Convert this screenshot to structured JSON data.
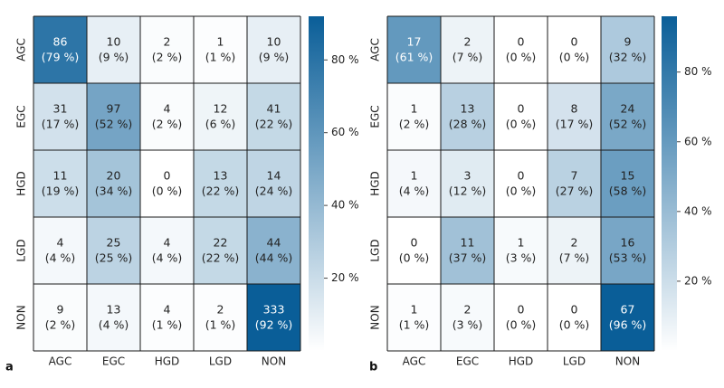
{
  "chart_data": [
    {
      "type": "heatmap",
      "panel_label": "a",
      "rows": [
        "AGC",
        "EGC",
        "HGD",
        "LGD",
        "NON"
      ],
      "columns": [
        "AGC",
        "EGC",
        "HGD",
        "LGD",
        "NON"
      ],
      "counts": [
        [
          86,
          10,
          2,
          1,
          10
        ],
        [
          31,
          97,
          4,
          12,
          41
        ],
        [
          11,
          20,
          0,
          13,
          14
        ],
        [
          4,
          25,
          4,
          22,
          44
        ],
        [
          9,
          13,
          4,
          2,
          333
        ]
      ],
      "percent_labels": [
        [
          "(79 %)",
          "(9 %)",
          "(2 %)",
          "(1 %)",
          "(9 %)"
        ],
        [
          "(17 %)",
          "(52 %)",
          "(2 %)",
          "(6 %)",
          "(22 %)"
        ],
        [
          "(19 %)",
          "(34 %)",
          "(0 %)",
          "(22 %)",
          "(24 %)"
        ],
        [
          "(4 %)",
          "(25 %)",
          "(4 %)",
          "(22 %)",
          "(44 %)"
        ],
        [
          "(2 %)",
          "(4 %)",
          "(1 %)",
          "(1 %)",
          "(92 %)"
        ]
      ],
      "percent_values": [
        [
          79,
          9,
          2,
          1,
          9
        ],
        [
          17,
          52,
          2,
          6,
          22
        ],
        [
          19,
          34,
          0,
          22,
          24
        ],
        [
          4,
          25,
          4,
          22,
          44
        ],
        [
          2,
          4,
          1,
          1,
          92
        ]
      ],
      "colorbar": {
        "range": [
          0,
          92
        ],
        "ticks": [
          20,
          40,
          60,
          80
        ],
        "tick_labels": [
          "20 %",
          "40 %",
          "60 %",
          "80 %"
        ],
        "color_low": "#ffffff",
        "color_high": "#0a5e98"
      }
    },
    {
      "type": "heatmap",
      "panel_label": "b",
      "rows": [
        "AGC",
        "EGC",
        "HGD",
        "LGD",
        "NON"
      ],
      "columns": [
        "AGC",
        "EGC",
        "HGD",
        "LGD",
        "NON"
      ],
      "counts": [
        [
          17,
          2,
          0,
          0,
          9
        ],
        [
          1,
          13,
          0,
          8,
          24
        ],
        [
          1,
          3,
          0,
          7,
          15
        ],
        [
          0,
          11,
          1,
          2,
          16
        ],
        [
          1,
          2,
          0,
          0,
          67
        ]
      ],
      "percent_labels": [
        [
          "(61 %)",
          "(7 %)",
          "(0 %)",
          "(0 %)",
          "(32 %)"
        ],
        [
          "(2 %)",
          "(28 %)",
          "(0 %)",
          "(17 %)",
          "(52 %)"
        ],
        [
          "(4 %)",
          "(12 %)",
          "(0 %)",
          "(27 %)",
          "(58 %)"
        ],
        [
          "(0 %)",
          "(37 %)",
          "(3 %)",
          "(7 %)",
          "(53 %)"
        ],
        [
          "(1 %)",
          "(3 %)",
          "(0 %)",
          "(0 %)",
          "(96 %)"
        ]
      ],
      "percent_values": [
        [
          61,
          7,
          0,
          0,
          32
        ],
        [
          2,
          28,
          0,
          17,
          52
        ],
        [
          4,
          12,
          0,
          27,
          58
        ],
        [
          0,
          37,
          3,
          7,
          53
        ],
        [
          1,
          3,
          0,
          0,
          96
        ]
      ],
      "colorbar": {
        "range": [
          0,
          96
        ],
        "ticks": [
          20,
          40,
          60,
          80
        ],
        "tick_labels": [
          "20 %",
          "40 %",
          "60 %",
          "80 %"
        ],
        "color_low": "#ffffff",
        "color_high": "#0a5e98"
      }
    }
  ]
}
